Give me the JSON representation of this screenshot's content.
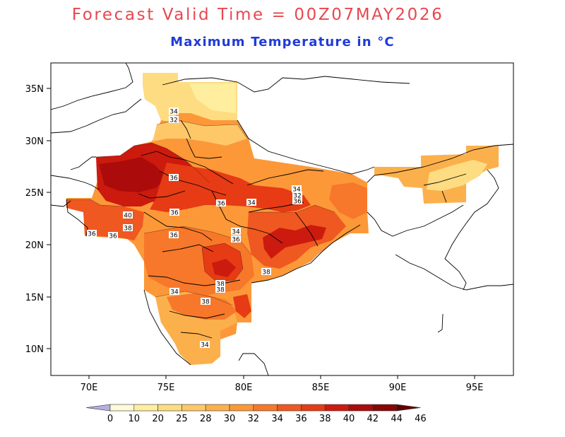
{
  "header": {
    "title": "Forecast Valid Time = 00Z07MAY2026",
    "subtitle": "Maximum Temperature in °C",
    "title_color": "#e8474f",
    "subtitle_color": "#1f3bd8"
  },
  "map": {
    "lon_ticks": [
      "70E",
      "75E",
      "80E",
      "85E",
      "90E",
      "95E"
    ],
    "lat_ticks": [
      "35N",
      "30N",
      "25N",
      "20N",
      "15N",
      "10N"
    ],
    "contour_labels": [
      "34",
      "32",
      "36",
      "36",
      "34",
      "36",
      "34",
      "36",
      "36",
      "40",
      "38",
      "36",
      "34",
      "36",
      "38",
      "38",
      "38",
      "34",
      "38",
      "34",
      "32",
      "36"
    ]
  },
  "colorbar": {
    "labels": [
      "0",
      "10",
      "20",
      "25",
      "28",
      "30",
      "32",
      "34",
      "36",
      "38",
      "40",
      "42",
      "44",
      "46"
    ],
    "colors": [
      "#b7aee0",
      "#fffad8",
      "#ffee9e",
      "#fedc82",
      "#fec868",
      "#fcb04c",
      "#fc9838",
      "#f7782a",
      "#ef5820",
      "#e63b14",
      "#cc1a0f",
      "#ac0b0b",
      "#880606",
      "#620000"
    ]
  }
}
